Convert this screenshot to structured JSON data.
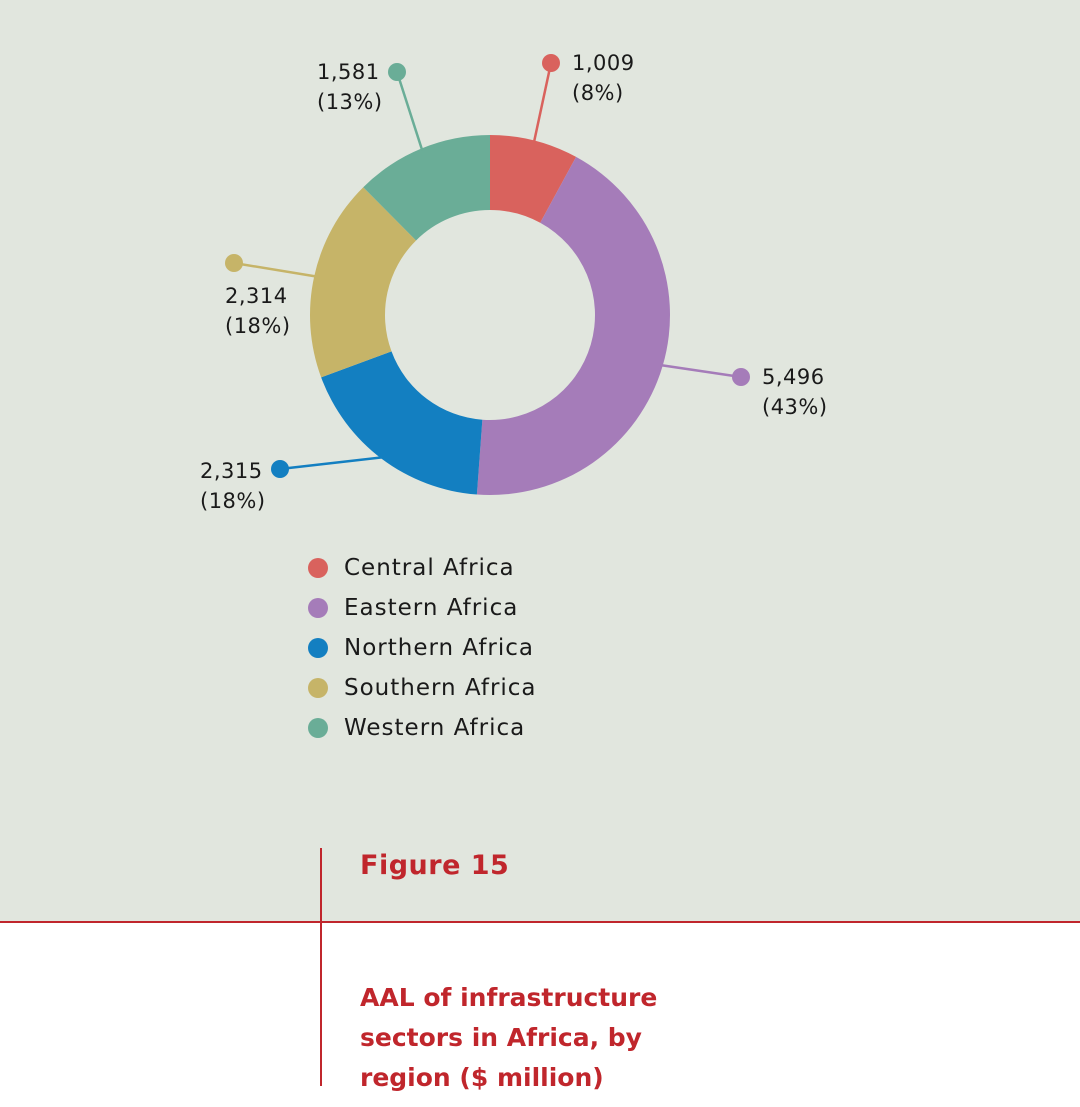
{
  "chart_data": {
    "type": "pie",
    "title": "AAL of infrastructure sectors in Africa, by region ($ million)",
    "categories": [
      "Central Africa",
      "Eastern Africa",
      "Northern Africa",
      "Southern Africa",
      "Western Africa"
    ],
    "values": [
      1009,
      5496,
      2315,
      2314,
      1581
    ],
    "value_labels": [
      "1,009",
      "5,496",
      "2,315",
      "2,314",
      "1,581"
    ],
    "percent_labels": [
      "(8%)",
      "(43%)",
      "(18%)",
      "(18%)",
      "(13%)"
    ],
    "colors": [
      "#d9625d",
      "#a57cb9",
      "#137fc1",
      "#c6b468",
      "#6aad97"
    ],
    "donut": true,
    "legend_position": "bottom-left"
  },
  "figure": {
    "number": "Figure 15",
    "title": "AAL of infrastructure sectors in Africa, by region ($ million)"
  }
}
